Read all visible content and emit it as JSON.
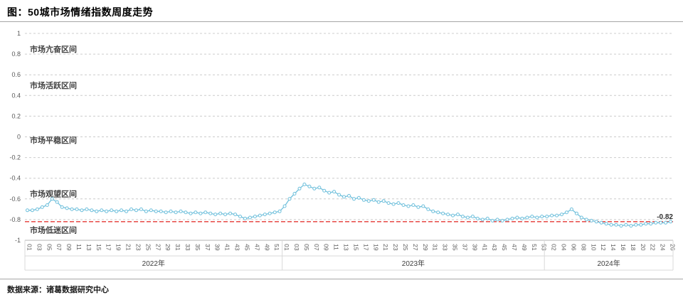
{
  "header": {
    "title": "图：50城市场情绪指数周度走势"
  },
  "footer": {
    "source": "数据来源：诸葛数据研究中心"
  },
  "chart_data": {
    "type": "line",
    "title": "50城市场情绪指数周度走势",
    "ylim": [
      -1,
      1
    ],
    "y_ticks": [
      "1",
      "0.8",
      "0.6",
      "0.4",
      "0.2",
      "0",
      "-0.2",
      "-0.4",
      "-0.6",
      "-0.8",
      "-1"
    ],
    "grid_on": true,
    "grid_color": "#cccccc",
    "line_color": "#70c0dc",
    "zones": [
      {
        "text": "市场亢奋区间",
        "y": 0.85
      },
      {
        "text": "市场活跃区间",
        "y": 0.5
      },
      {
        "text": "市场平稳区间",
        "y": -0.03
      },
      {
        "text": "市场观望区间",
        "y": -0.55
      },
      {
        "text": "市场低迷区间",
        "y": -0.9
      }
    ],
    "reference_line": {
      "value": -0.82,
      "label": "-0.82",
      "color": "#e53935"
    },
    "groups": [
      {
        "label": "2022年",
        "tick_labels": [
          "01",
          "03",
          "05",
          "07",
          "09",
          "11",
          "13",
          "15",
          "17",
          "19",
          "21",
          "23",
          "25",
          "27",
          "29",
          "31",
          "33",
          "35",
          "37",
          "39",
          "41",
          "43",
          "45",
          "47",
          "49",
          "51"
        ],
        "values": [
          -0.71,
          -0.71,
          -0.7,
          -0.68,
          -0.66,
          -0.6,
          -0.63,
          -0.68,
          -0.69,
          -0.7,
          -0.7,
          -0.71,
          -0.7,
          -0.71,
          -0.72,
          -0.71,
          -0.72,
          -0.71,
          -0.72,
          -0.71,
          -0.72,
          -0.7,
          -0.71,
          -0.7,
          -0.72,
          -0.71,
          -0.72,
          -0.72,
          -0.73,
          -0.72,
          -0.73,
          -0.72,
          -0.73,
          -0.74,
          -0.73,
          -0.74,
          -0.73,
          -0.74,
          -0.75,
          -0.74,
          -0.75,
          -0.74,
          -0.75,
          -0.77,
          -0.79,
          -0.78,
          -0.77,
          -0.76,
          -0.75,
          -0.74,
          -0.73,
          -0.72
        ]
      },
      {
        "label": "2023年",
        "tick_labels": [
          "01",
          "03",
          "05",
          "07",
          "09",
          "11",
          "13",
          "15",
          "17",
          "19",
          "21",
          "23",
          "25",
          "27",
          "29",
          "31",
          "33",
          "35",
          "37",
          "39",
          "41",
          "43",
          "45",
          "47",
          "49",
          "51",
          "53"
        ],
        "values": [
          -0.67,
          -0.6,
          -0.55,
          -0.5,
          -0.46,
          -0.48,
          -0.5,
          -0.49,
          -0.52,
          -0.54,
          -0.53,
          -0.56,
          -0.58,
          -0.57,
          -0.6,
          -0.59,
          -0.61,
          -0.62,
          -0.61,
          -0.63,
          -0.62,
          -0.64,
          -0.65,
          -0.64,
          -0.66,
          -0.67,
          -0.66,
          -0.68,
          -0.67,
          -0.7,
          -0.72,
          -0.73,
          -0.74,
          -0.75,
          -0.76,
          -0.75,
          -0.77,
          -0.78,
          -0.77,
          -0.79,
          -0.8,
          -0.79,
          -0.81,
          -0.8,
          -0.81,
          -0.8,
          -0.79,
          -0.78,
          -0.79,
          -0.78,
          -0.77,
          -0.78,
          -0.77
        ]
      },
      {
        "label": "2024年",
        "tick_labels": [
          "02",
          "04",
          "06",
          "08",
          "10",
          "12",
          "14",
          "16",
          "18",
          "20",
          "22",
          "24",
          "26"
        ],
        "values": [
          -0.77,
          -0.76,
          -0.76,
          -0.75,
          -0.73,
          -0.7,
          -0.74,
          -0.78,
          -0.8,
          -0.81,
          -0.82,
          -0.83,
          -0.84,
          -0.85,
          -0.85,
          -0.86,
          -0.85,
          -0.86,
          -0.85,
          -0.85,
          -0.84,
          -0.84,
          -0.83,
          -0.83,
          -0.83,
          -0.82
        ]
      }
    ]
  }
}
